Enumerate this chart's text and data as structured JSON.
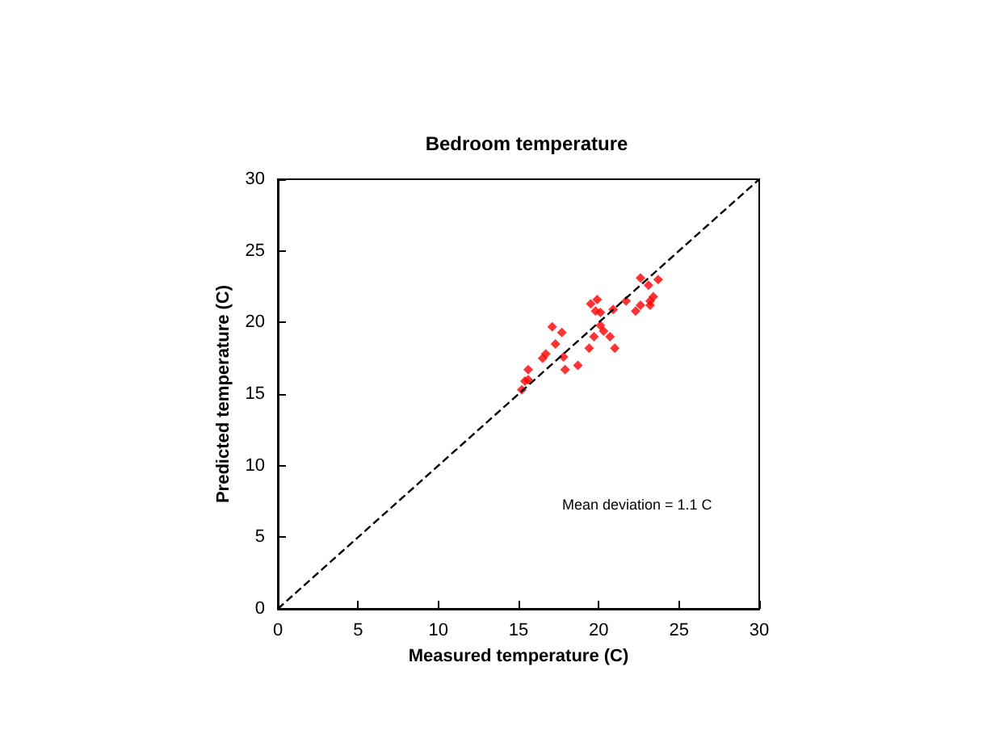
{
  "chart_data": {
    "type": "scatter",
    "title": "Bedroom temperature",
    "xlabel": "Measured temperature (C)",
    "ylabel": "Predicted temperature (C)",
    "xlim": [
      0,
      30
    ],
    "ylim": [
      0,
      30
    ],
    "xticks": [
      0,
      5,
      10,
      15,
      20,
      25,
      30
    ],
    "yticks": [
      0,
      5,
      10,
      15,
      20,
      25,
      30
    ],
    "grid": false,
    "marker": "diamond",
    "annotations": [
      "Mean deviation = 1.1 C"
    ],
    "series": [
      {
        "color": "#ff0000",
        "x": [
          22.6,
          23.1,
          23.7,
          23.4,
          23.2,
          23.2,
          22.6,
          22.3,
          21.7,
          20.9,
          19.9,
          19.5,
          19.8,
          20.1,
          20.1,
          20.3,
          19.7,
          20.7,
          21.0,
          19.4,
          17.1,
          17.7,
          17.3,
          16.7,
          16.5,
          17.8,
          18.7,
          17.9,
          15.6,
          15.6,
          15.4,
          15.2
        ],
        "values": [
          23.1,
          22.6,
          23.0,
          21.8,
          21.5,
          21.2,
          21.2,
          20.8,
          21.5,
          20.9,
          21.6,
          21.3,
          20.8,
          20.7,
          19.8,
          19.4,
          19.0,
          19.0,
          18.2,
          18.2,
          19.7,
          19.3,
          18.5,
          17.8,
          17.5,
          17.6,
          17.0,
          16.7,
          16.7,
          16.0,
          15.9,
          15.3
        ]
      },
      {
        "type": "line",
        "color": "#000000",
        "line_style": "dashed",
        "marker": "none",
        "x": [
          0,
          30
        ],
        "values": [
          0,
          30
        ]
      }
    ]
  }
}
